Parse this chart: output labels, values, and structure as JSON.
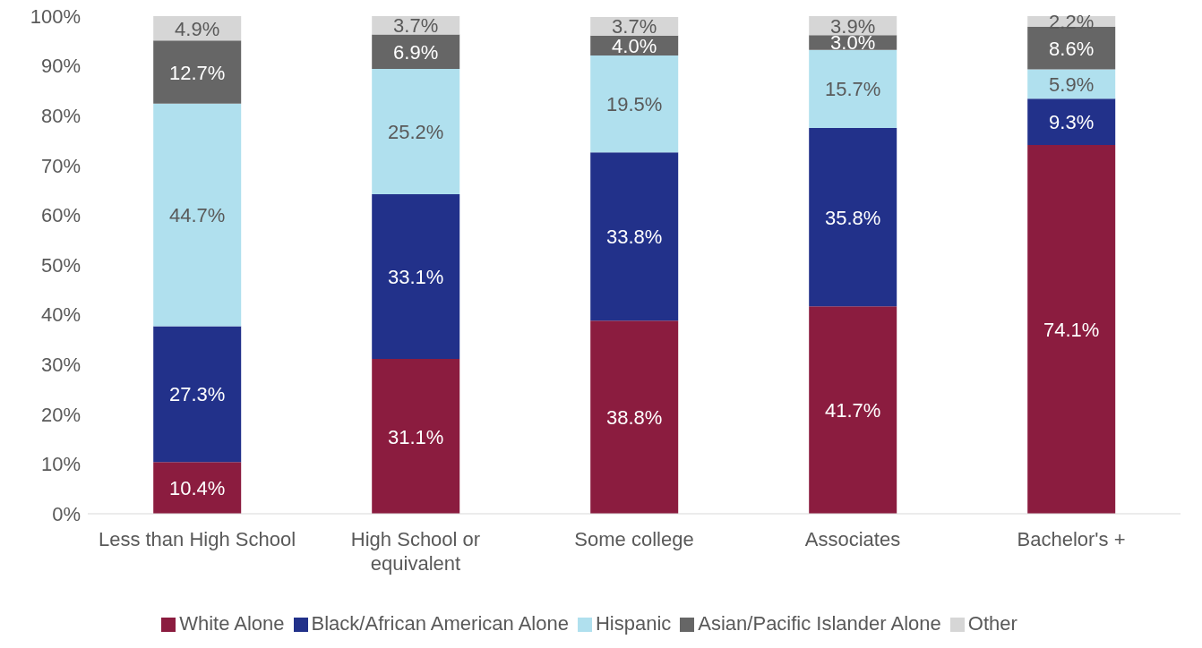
{
  "chart_data": {
    "type": "bar",
    "stacked": true,
    "categories": [
      "Less than High School",
      "High School or equivalent",
      "Some college",
      "Associates",
      "Bachelor's +"
    ],
    "series": [
      {
        "name": "White Alone",
        "color": "#8b1c3f",
        "values": [
          10.4,
          31.1,
          38.8,
          41.7,
          74.1
        ],
        "value_labels": [
          "10.4%",
          "31.1%",
          "38.8%",
          "41.7%",
          "74.1%"
        ]
      },
      {
        "name": "Black/African American Alone",
        "color": "#22318a",
        "values": [
          27.3,
          33.1,
          33.8,
          35.8,
          9.3
        ],
        "value_labels": [
          "27.3%",
          "33.1%",
          "33.8%",
          "35.8%",
          "9.3%"
        ]
      },
      {
        "name": "Hispanic",
        "color": "#b0e0ee",
        "values": [
          44.7,
          25.2,
          19.5,
          15.7,
          5.9
        ],
        "value_labels": [
          "44.7%",
          "25.2%",
          "19.5%",
          "15.7%",
          "5.9%"
        ]
      },
      {
        "name": "Asian/Pacific Islander Alone",
        "color": "#666666",
        "values": [
          12.7,
          6.9,
          4.0,
          3.0,
          8.6
        ],
        "value_labels": [
          "12.7%",
          "6.9%",
          "4.0%",
          "3.0%",
          "8.6%"
        ]
      },
      {
        "name": "Other",
        "color": "#d6d6d6",
        "values": [
          4.9,
          3.7,
          3.7,
          3.9,
          2.2
        ],
        "value_labels": [
          "4.9%",
          "3.7%",
          "3.7%",
          "3.9%",
          "2.2%"
        ]
      }
    ],
    "ylim": [
      0,
      100
    ],
    "yticks": [
      {
        "value": 0,
        "label": "0%"
      },
      {
        "value": 10,
        "label": "10%"
      },
      {
        "value": 20,
        "label": "20%"
      },
      {
        "value": 30,
        "label": "30%"
      },
      {
        "value": 40,
        "label": "40%"
      },
      {
        "value": 50,
        "label": "50%"
      },
      {
        "value": 60,
        "label": "60%"
      },
      {
        "value": 70,
        "label": "70%"
      },
      {
        "value": 80,
        "label": "80%"
      },
      {
        "value": 90,
        "label": "90%"
      },
      {
        "value": 100,
        "label": "100%"
      }
    ],
    "grid": false,
    "legend": "bottom"
  }
}
